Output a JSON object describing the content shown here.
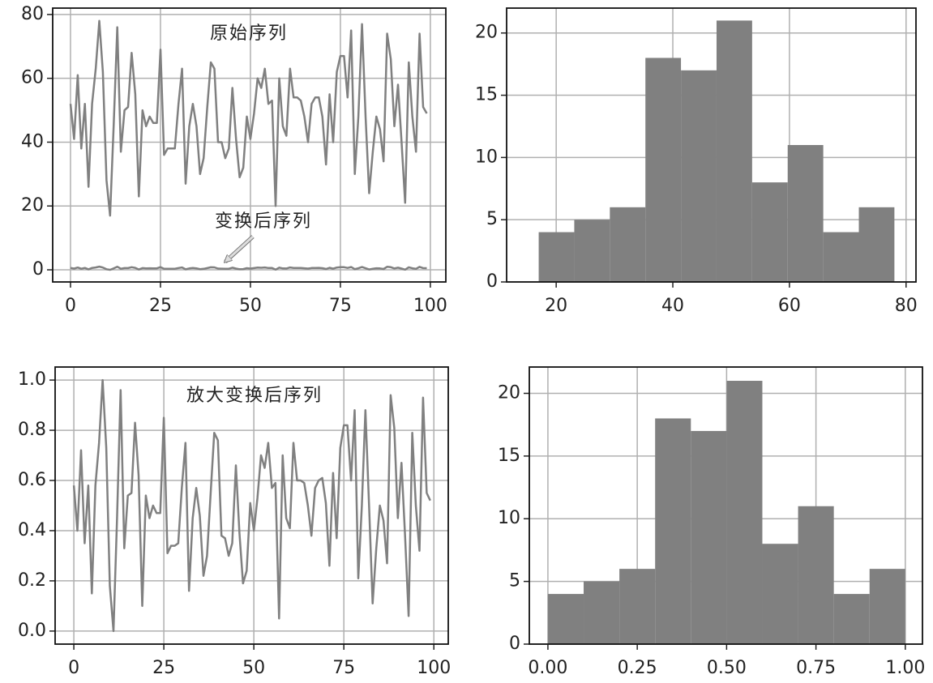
{
  "chart_data": [
    {
      "type": "line",
      "x": [
        0,
        1,
        2,
        3,
        4,
        5,
        6,
        7,
        8,
        9,
        10,
        11,
        12,
        13,
        14,
        15,
        16,
        17,
        18,
        19,
        20,
        21,
        22,
        23,
        24,
        25,
        26,
        27,
        28,
        29,
        30,
        31,
        32,
        33,
        34,
        35,
        36,
        37,
        38,
        39,
        40,
        41,
        42,
        43,
        44,
        45,
        46,
        47,
        48,
        49,
        50,
        51,
        52,
        53,
        54,
        55,
        56,
        57,
        58,
        59,
        60,
        61,
        62,
        63,
        64,
        65,
        66,
        67,
        68,
        69,
        70,
        71,
        72,
        73,
        74,
        75,
        76,
        77,
        78,
        79,
        80,
        81,
        82,
        83,
        84,
        85,
        86,
        87,
        88,
        89,
        90,
        91,
        92,
        93,
        94,
        95,
        96,
        97,
        98,
        99
      ],
      "series": [
        {
          "color": "#808080",
          "values": [
            52,
            41,
            61,
            38,
            52,
            26,
            52,
            63,
            78,
            62,
            28,
            17,
            45,
            76,
            37,
            50,
            51,
            68,
            55,
            23,
            50,
            45,
            48,
            46,
            46,
            69,
            36,
            38,
            38,
            38,
            52,
            63,
            27,
            45,
            52,
            45,
            30,
            35,
            51,
            65,
            63,
            40,
            40,
            35,
            38,
            57,
            41,
            29,
            32,
            48,
            41,
            49,
            60,
            57,
            63,
            52,
            53,
            20,
            60,
            45,
            42,
            63,
            54,
            54,
            53,
            48,
            40,
            52,
            54,
            54,
            48,
            33,
            55,
            40,
            62,
            67,
            67,
            54,
            75,
            30,
            48,
            77,
            48,
            24,
            37,
            48,
            44,
            34,
            74,
            66,
            45,
            58,
            40,
            21,
            65,
            48,
            37,
            74,
            51,
            49
          ]
        },
        {
          "color": "#808080",
          "values": [
            0.58,
            0.4,
            0.72,
            0.35,
            0.58,
            0.15,
            0.58,
            0.75,
            1.0,
            0.73,
            0.18,
            0.0,
            0.45,
            0.96,
            0.33,
            0.54,
            0.55,
            0.83,
            0.62,
            0.1,
            0.54,
            0.45,
            0.5,
            0.47,
            0.47,
            0.85,
            0.31,
            0.34,
            0.34,
            0.35,
            0.57,
            0.75,
            0.16,
            0.45,
            0.57,
            0.46,
            0.22,
            0.3,
            0.55,
            0.79,
            0.76,
            0.38,
            0.37,
            0.3,
            0.35,
            0.66,
            0.39,
            0.19,
            0.24,
            0.51,
            0.4,
            0.53,
            0.7,
            0.65,
            0.75,
            0.57,
            0.59,
            0.05,
            0.7,
            0.45,
            0.41,
            0.75,
            0.6,
            0.6,
            0.59,
            0.5,
            0.38,
            0.57,
            0.6,
            0.61,
            0.51,
            0.26,
            0.63,
            0.37,
            0.73,
            0.82,
            0.82,
            0.6,
            0.88,
            0.21,
            0.5,
            0.88,
            0.5,
            0.11,
            0.33,
            0.5,
            0.44,
            0.27,
            0.94,
            0.81,
            0.45,
            0.67,
            0.38,
            0.06,
            0.79,
            0.5,
            0.32,
            0.93,
            0.55,
            0.52
          ]
        }
      ],
      "annotations": [
        "原始序列",
        "变换后序列"
      ],
      "xlim": [
        -4.95,
        104.3
      ],
      "xticks": [
        0,
        25,
        50,
        75,
        100
      ],
      "ylim": [
        -3.8,
        82
      ],
      "yticks": [
        0,
        20,
        40,
        60,
        80
      ],
      "grid": true
    },
    {
      "type": "histogram",
      "color": "#808080",
      "bins": [
        17,
        23.1,
        29.2,
        35.3,
        41.4,
        47.5,
        53.6,
        59.7,
        65.8,
        71.9,
        78
      ],
      "counts": [
        4,
        5,
        6,
        18,
        17,
        21,
        8,
        11,
        4,
        6
      ],
      "xlim": [
        11.5,
        81.7
      ],
      "xticks": [
        20,
        40,
        60,
        80
      ],
      "ylim": [
        0,
        22
      ],
      "yticks": [
        0,
        5,
        10,
        15,
        20
      ],
      "grid": true
    },
    {
      "type": "line",
      "x": [
        0,
        1,
        2,
        3,
        4,
        5,
        6,
        7,
        8,
        9,
        10,
        11,
        12,
        13,
        14,
        15,
        16,
        17,
        18,
        19,
        20,
        21,
        22,
        23,
        24,
        25,
        26,
        27,
        28,
        29,
        30,
        31,
        32,
        33,
        34,
        35,
        36,
        37,
        38,
        39,
        40,
        41,
        42,
        43,
        44,
        45,
        46,
        47,
        48,
        49,
        50,
        51,
        52,
        53,
        54,
        55,
        56,
        57,
        58,
        59,
        60,
        61,
        62,
        63,
        64,
        65,
        66,
        67,
        68,
        69,
        70,
        71,
        72,
        73,
        74,
        75,
        76,
        77,
        78,
        79,
        80,
        81,
        82,
        83,
        84,
        85,
        86,
        87,
        88,
        89,
        90,
        91,
        92,
        93,
        94,
        95,
        96,
        97,
        98,
        99
      ],
      "series": [
        {
          "color": "#808080",
          "values": [
            0.58,
            0.4,
            0.72,
            0.35,
            0.58,
            0.15,
            0.58,
            0.75,
            1.0,
            0.73,
            0.18,
            0.0,
            0.45,
            0.96,
            0.33,
            0.54,
            0.55,
            0.83,
            0.62,
            0.1,
            0.54,
            0.45,
            0.5,
            0.47,
            0.47,
            0.85,
            0.31,
            0.34,
            0.34,
            0.35,
            0.57,
            0.75,
            0.16,
            0.45,
            0.57,
            0.46,
            0.22,
            0.3,
            0.55,
            0.79,
            0.76,
            0.38,
            0.37,
            0.3,
            0.35,
            0.66,
            0.39,
            0.19,
            0.24,
            0.51,
            0.4,
            0.53,
            0.7,
            0.65,
            0.75,
            0.57,
            0.59,
            0.05,
            0.7,
            0.45,
            0.41,
            0.75,
            0.6,
            0.6,
            0.59,
            0.5,
            0.38,
            0.57,
            0.6,
            0.61,
            0.51,
            0.26,
            0.63,
            0.37,
            0.73,
            0.82,
            0.82,
            0.6,
            0.88,
            0.21,
            0.5,
            0.88,
            0.5,
            0.11,
            0.33,
            0.5,
            0.44,
            0.27,
            0.94,
            0.81,
            0.45,
            0.67,
            0.38,
            0.06,
            0.79,
            0.5,
            0.32,
            0.93,
            0.55,
            0.52
          ]
        }
      ],
      "annotations": [
        "放大变换后序列"
      ],
      "xlim": [
        -5.2,
        104
      ],
      "xticks": [
        0,
        25,
        50,
        75,
        100
      ],
      "ylim": [
        -0.052,
        1.052
      ],
      "yticks": [
        {
          "value": 0,
          "label": "0.0"
        },
        {
          "value": 0.2,
          "label": "0.2"
        },
        {
          "value": 0.4,
          "label": "0.4"
        },
        {
          "value": 0.6,
          "label": "0.6"
        },
        {
          "value": 0.8,
          "label": "0.8"
        },
        {
          "value": 1,
          "label": "1.0"
        }
      ],
      "grid": true
    },
    {
      "type": "histogram",
      "color": "#808080",
      "bins": [
        0,
        0.1,
        0.2,
        0.3,
        0.4,
        0.5,
        0.6,
        0.7,
        0.8,
        0.9,
        1.0
      ],
      "counts": [
        4,
        5,
        6,
        18,
        17,
        21,
        8,
        11,
        4,
        6
      ],
      "xlim": [
        -0.052,
        1.048
      ],
      "xticks": [
        {
          "value": 0,
          "label": "0.00"
        },
        {
          "value": 0.25,
          "label": "0.25"
        },
        {
          "value": 0.5,
          "label": "0.50"
        },
        {
          "value": 0.75,
          "label": "0.75"
        },
        {
          "value": 1,
          "label": "1.00"
        }
      ],
      "ylim": [
        0,
        22.1
      ],
      "yticks": [
        0,
        5,
        10,
        15,
        20
      ],
      "grid": true
    }
  ]
}
